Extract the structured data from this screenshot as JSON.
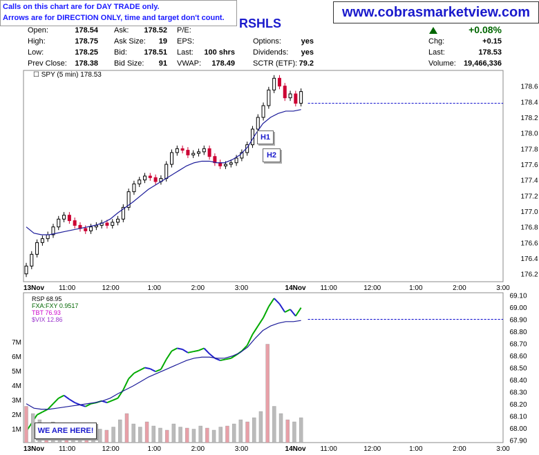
{
  "header": {
    "note_line1": "Calls on this chart are for DAY TRADE only.",
    "note_line2": "Arrows are for DIRECTION ONLY, time and target don't count.",
    "site": "www.cobrasmarketview.com",
    "ticker": "RSHLS",
    "change_pct": "+0.08%"
  },
  "quote": {
    "open_label": "Open:",
    "open": "178.54",
    "high_label": "High:",
    "high": "178.75",
    "low_label": "Low:",
    "low": "178.25",
    "prev_label": "Prev Close:",
    "prev": "178.38",
    "ask_label": "Ask:",
    "ask": "178.52",
    "asksize_label": "Ask Size:",
    "asksize": "19",
    "bid_label": "Bid:",
    "bid": "178.51",
    "bidsize_label": "Bid Size:",
    "bidsize": "91",
    "pe_label": "P/E:",
    "pe": "",
    "eps_label": "EPS:",
    "eps": "",
    "last_label": "Last:",
    "last_shrs": "100 shrs",
    "vwap_label": "VWAP:",
    "vwap": "178.49",
    "options_label": "Options:",
    "options": "yes",
    "dividends_label": "Dividends:",
    "dividends": "yes",
    "sctr_label": "SCTR (ETF):",
    "sctr": "79.2",
    "chg_label": "Chg:",
    "chg": "+0.15",
    "last2_label": "Last:",
    "last2": "178.53",
    "volume_label": "Volume:",
    "volume": "19,466,336"
  },
  "annotations": {
    "h1": "H1",
    "h2": "H2",
    "we_are_here": "WE ARE HERE!"
  },
  "colors": {
    "up": "#000000",
    "down": "#cc0033",
    "ma": "#1a1a99",
    "ref_line": "#0000cc",
    "rsp_up": "#00aa00",
    "rsp_down": "#2222cc",
    "volume_bar": "#bbbbbb",
    "volume_bar_red": "#e8a0a8"
  },
  "chart_data": [
    {
      "type": "candlestick",
      "title": "SPY (5 min) 178.53",
      "ylim": [
        176.1,
        178.8
      ],
      "y_ticks": [
        "176.2",
        "176.4",
        "176.6",
        "176.8",
        "177.0",
        "177.2",
        "177.4",
        "177.6",
        "177.8",
        "178.0",
        "178.2",
        "178.4",
        "178.6"
      ],
      "x_ticks": [
        "13Nov",
        "11:00",
        "12:00",
        "1:00",
        "2:00",
        "3:00",
        "14Nov",
        "11:00",
        "12:00",
        "1:00",
        "2:00",
        "3:00"
      ],
      "reference_level": 178.38,
      "close_path": [
        176.3,
        176.45,
        176.6,
        176.65,
        176.7,
        176.8,
        176.9,
        176.95,
        176.88,
        176.82,
        176.78,
        176.75,
        176.8,
        176.82,
        176.85,
        176.82,
        176.86,
        176.9,
        177.05,
        177.25,
        177.35,
        177.4,
        177.45,
        177.43,
        177.38,
        177.42,
        177.6,
        177.75,
        177.8,
        177.78,
        177.72,
        177.74,
        177.76,
        177.8,
        177.7,
        177.62,
        177.58,
        177.6,
        177.62,
        177.68,
        177.75,
        177.85,
        178.05,
        178.2,
        178.35,
        178.55,
        178.7,
        178.6,
        178.45,
        178.5,
        178.38,
        178.53
      ],
      "ma_path": [
        176.8,
        176.72,
        176.7,
        176.7,
        176.72,
        176.74,
        176.76,
        176.78,
        176.8,
        176.82,
        176.85,
        176.9,
        176.98,
        177.05,
        177.12,
        177.2,
        177.28,
        177.34,
        177.4,
        177.46,
        177.52,
        177.58,
        177.62,
        177.64,
        177.64,
        177.62,
        177.62,
        177.66,
        177.72,
        177.82,
        177.98,
        178.12,
        178.2,
        178.25,
        178.28,
        178.28,
        178.3
      ]
    },
    {
      "type": "line",
      "series": [
        {
          "name": "RSP 68.95"
        },
        {
          "name": "FXA:FXY 0.9517"
        },
        {
          "name": "TBT 76.93"
        },
        {
          "name": "$VIX 12.86"
        }
      ],
      "ylim": [
        67.88,
        69.12
      ],
      "y_ticks": [
        "67.90",
        "68.00",
        "68.10",
        "68.20",
        "68.30",
        "68.40",
        "68.50",
        "68.60",
        "68.70",
        "68.80",
        "68.90",
        "69.00",
        "69.10"
      ],
      "volume_ticks": [
        "1M",
        "2M",
        "3M",
        "4M",
        "5M",
        "6M",
        "7M"
      ],
      "x_ticks": [
        "13Nov",
        "11:00",
        "12:00",
        "1:00",
        "2:00",
        "3:00",
        "14Nov",
        "11:00",
        "12:00",
        "1:00",
        "2:00",
        "3:00"
      ],
      "reference_level": 68.9
    }
  ]
}
